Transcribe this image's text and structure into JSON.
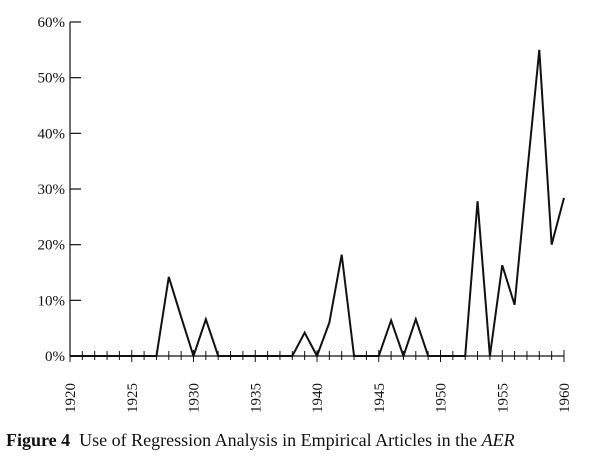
{
  "caption": {
    "figure_label": "Figure 4",
    "text_before": "Use of Regression Analysis in Empirical Articles in the",
    "text_italic": "AER"
  },
  "chart_data": {
    "type": "line",
    "title": "",
    "xlabel": "",
    "ylabel": "",
    "xlim": [
      1920,
      1960
    ],
    "ylim": [
      0,
      60
    ],
    "xticks": [
      1920,
      1925,
      1930,
      1935,
      1940,
      1945,
      1950,
      1955,
      1960
    ],
    "yticks": [
      0,
      10,
      20,
      30,
      40,
      50,
      60
    ],
    "ytick_labels": [
      "0%",
      "10%",
      "20%",
      "30%",
      "40%",
      "50%",
      "60%"
    ],
    "xtick_labels": [
      "1920",
      "1925",
      "1930",
      "1935",
      "1940",
      "1945",
      "1950",
      "1955",
      "1960"
    ],
    "grid": false,
    "series": [
      {
        "x": [
          1920,
          1927,
          1928,
          1929,
          1930,
          1931,
          1932,
          1938,
          1939,
          1940,
          1941,
          1942,
          1943,
          1945,
          1946,
          1947,
          1948,
          1949,
          1952,
          1953,
          1954,
          1955,
          1956,
          1957,
          1958,
          1959,
          1960
        ],
        "y": [
          0,
          0,
          14.2,
          7,
          0,
          6.6,
          0,
          0,
          4.2,
          0,
          6,
          18.2,
          0,
          0,
          6.4,
          0,
          6.6,
          0,
          0,
          27.8,
          0,
          16.3,
          9.2,
          32.5,
          55,
          20,
          28.4
        ]
      }
    ],
    "colors": {
      "line": "#111111",
      "axis": "#111111"
    }
  }
}
